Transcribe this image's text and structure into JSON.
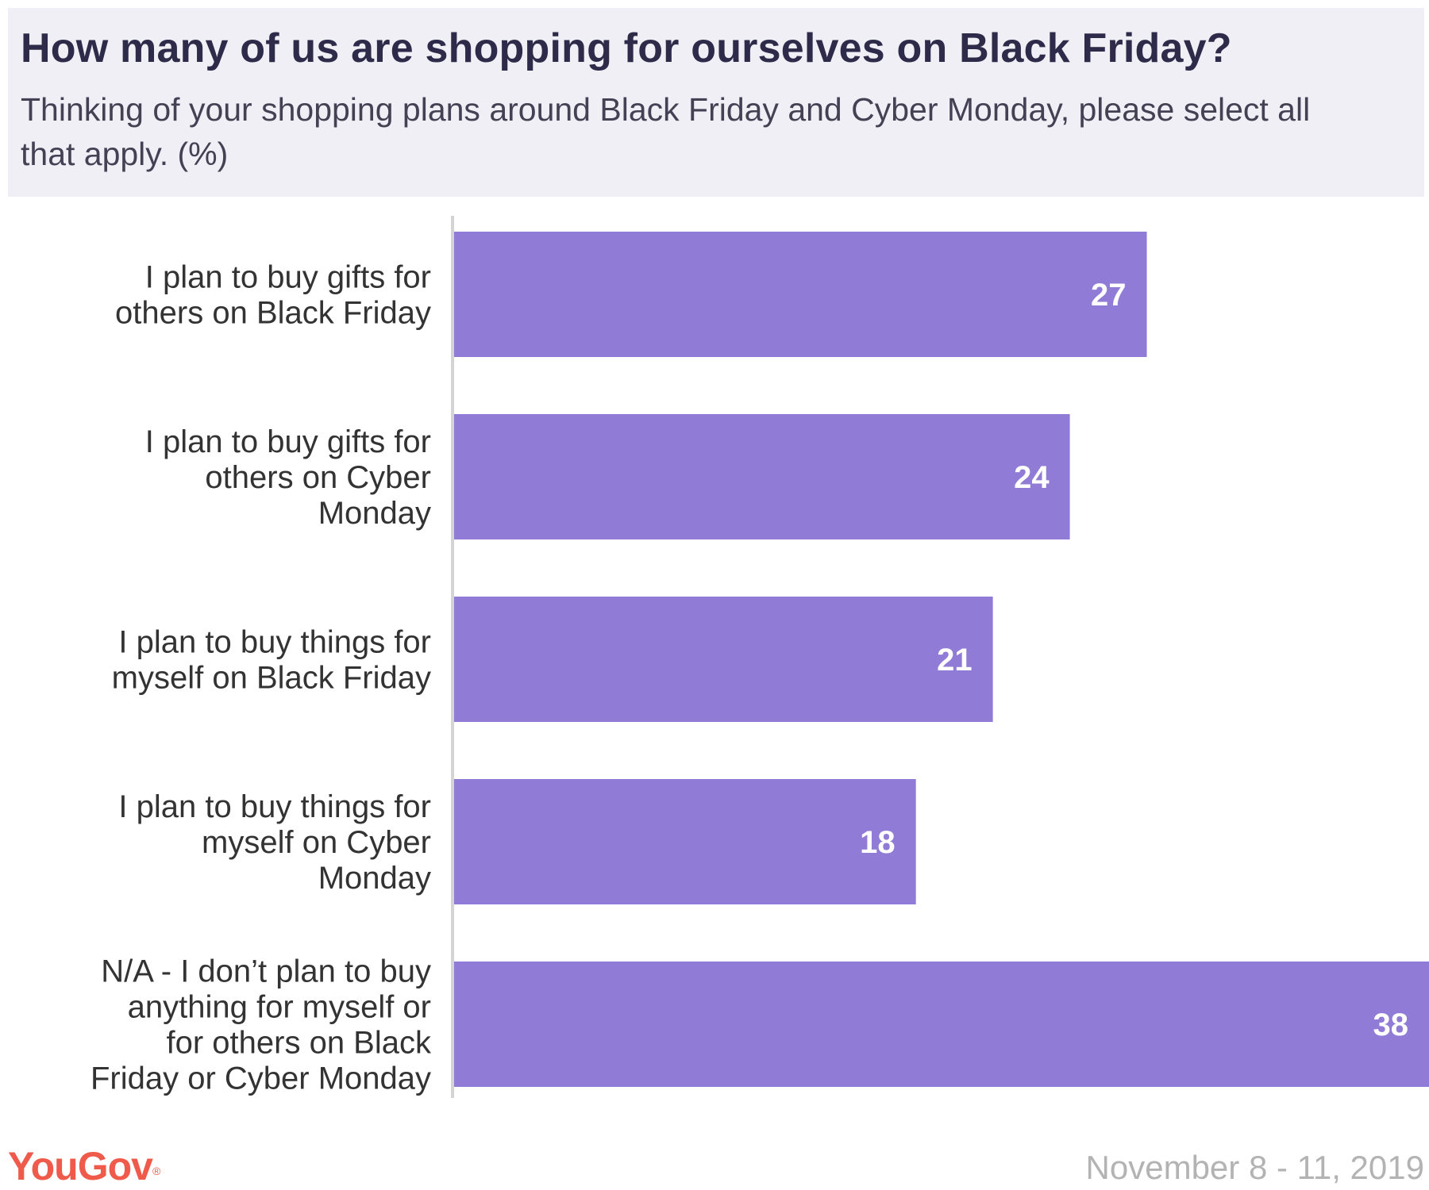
{
  "header": {
    "title": "How many of us are shopping for ourselves on Black Friday?",
    "subtitle": "Thinking of your shopping plans around Black Friday and Cyber Monday, please select all that apply. (%)"
  },
  "footer": {
    "logo": "YouGov",
    "logo_mark": "®",
    "date": "November 8 - 11, 2019"
  },
  "colors": {
    "bar": "#907bd6",
    "bar_label": "#ffffff",
    "axis": "#d4d4d4",
    "category_text": "#333333",
    "brand": "#f05a4a"
  },
  "chart_data": {
    "type": "bar",
    "orientation": "horizontal",
    "categories": [
      [
        "I plan to buy gifts for",
        "others on Black Friday"
      ],
      [
        "I plan to buy gifts for",
        "others on Cyber",
        "Monday"
      ],
      [
        "I plan to buy things for",
        "myself on Black Friday"
      ],
      [
        "I plan to buy things for",
        "myself on Cyber",
        "Monday"
      ],
      [
        "N/A - I don’t plan to buy",
        "anything for myself or",
        "for others on Black",
        "Friday or Cyber Monday"
      ]
    ],
    "values": [
      27,
      24,
      21,
      18,
      38
    ],
    "xlim": [
      0,
      38
    ],
    "grid": false,
    "legend": "none"
  }
}
